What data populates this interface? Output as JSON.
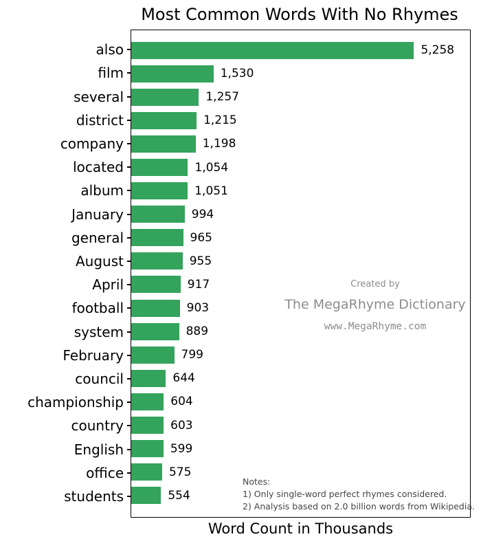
{
  "title": "Most Common Words With No Rhymes",
  "xlabel": "Word Count in Thousands",
  "colors": {
    "bar": "#34a35c",
    "axis": "#000000",
    "watermark_text": "#8c8c8c",
    "notes_text": "#454545"
  },
  "chart_data": {
    "type": "bar",
    "orientation": "horizontal",
    "title": "Most Common Words With No Rhymes",
    "xlabel": "Word Count in Thousands",
    "ylabel": "",
    "xlim": [
      0,
      6300
    ],
    "grid": false,
    "legend": false,
    "categories": [
      "also",
      "film",
      "several",
      "district",
      "company",
      "located",
      "album",
      "January",
      "general",
      "August",
      "April",
      "football",
      "system",
      "February",
      "council",
      "championship",
      "country",
      "English",
      "office",
      "students"
    ],
    "values": [
      5258,
      1530,
      1257,
      1215,
      1198,
      1054,
      1051,
      994,
      965,
      955,
      917,
      903,
      889,
      799,
      644,
      604,
      603,
      599,
      575,
      554
    ],
    "value_labels": [
      "5,258",
      "1,530",
      "1,257",
      "1,215",
      "1,198",
      "1,054",
      "1,051",
      "994",
      "965",
      "955",
      "917",
      "903",
      "889",
      "799",
      "644",
      "604",
      "603",
      "599",
      "575",
      "554"
    ]
  },
  "watermark": {
    "line1": "Created by",
    "line2": "The MegaRhyme Dictionary",
    "line3": "www.MegaRhyme.com"
  },
  "notes": {
    "heading": "Notes:",
    "line1": "1) Only single-word perfect rhymes considered.",
    "line2": "2) Analysis based on 2.0 billion words from Wikipedia."
  }
}
